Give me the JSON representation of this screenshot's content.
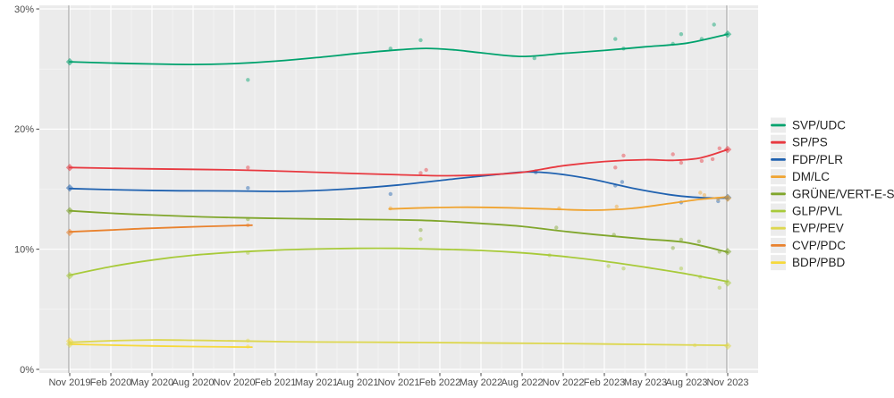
{
  "chart_data": {
    "type": "line",
    "title": "",
    "subtitle": "",
    "grid": "white-on-gray",
    "plot_background": "#ebebeb",
    "legend_position": "right",
    "x_axis": {
      "unit": "month",
      "tick_labels": [
        "Nov 2019",
        "Feb 2020",
        "May 2020",
        "Aug 2020",
        "Nov 2020",
        "Feb 2021",
        "May 2021",
        "Aug 2021",
        "Nov 2021",
        "Feb 2022",
        "May 2022",
        "Aug 2022",
        "Nov 2022",
        "Feb 2023",
        "May 2023",
        "Aug 2023",
        "Nov 2023"
      ],
      "tick_months": [
        0,
        3,
        6,
        9,
        12,
        15,
        18,
        21,
        24,
        27,
        30,
        33,
        36,
        39,
        42,
        45,
        48
      ]
    },
    "y_axis": {
      "tick_labels": [
        "0%",
        "10%",
        "20%",
        "30%"
      ],
      "tick_values": [
        0,
        10,
        20,
        30
      ],
      "minor_values": [
        5,
        15,
        25
      ],
      "range": [
        0,
        30.6
      ]
    },
    "election_marker_months": [
      0,
      48
    ],
    "series": [
      {
        "name": "SVP/UDC",
        "color": "#00a26d",
        "trend": [
          [
            0,
            25.6
          ],
          [
            3,
            25.5
          ],
          [
            6,
            25.42
          ],
          [
            9,
            25.38
          ],
          [
            12,
            25.45
          ],
          [
            15,
            25.65
          ],
          [
            18,
            25.95
          ],
          [
            21,
            26.3
          ],
          [
            24,
            26.6
          ],
          [
            26,
            26.72
          ],
          [
            28,
            26.6
          ],
          [
            30,
            26.35
          ],
          [
            33,
            26.05
          ],
          [
            36,
            26.3
          ],
          [
            39,
            26.55
          ],
          [
            42,
            26.85
          ],
          [
            45,
            27.15
          ],
          [
            48,
            27.9
          ]
        ],
        "polls": [
          [
            13,
            24.1
          ],
          [
            23.4,
            26.7
          ],
          [
            25.6,
            27.4
          ],
          [
            33.9,
            25.9
          ],
          [
            39.8,
            27.5
          ],
          [
            40.4,
            26.7
          ],
          [
            44,
            27.1
          ],
          [
            44.6,
            27.9
          ],
          [
            46.1,
            27.5
          ],
          [
            47,
            28.7
          ]
        ],
        "elections": [
          [
            0,
            25.6
          ],
          [
            48,
            27.9
          ]
        ]
      },
      {
        "name": "SP/PS",
        "color": "#e83940",
        "trend": [
          [
            0,
            16.8
          ],
          [
            4,
            16.72
          ],
          [
            8,
            16.66
          ],
          [
            12,
            16.6
          ],
          [
            16,
            16.48
          ],
          [
            20,
            16.33
          ],
          [
            24,
            16.2
          ],
          [
            27,
            16.12
          ],
          [
            30,
            16.18
          ],
          [
            33,
            16.4
          ],
          [
            36,
            16.95
          ],
          [
            39,
            17.3
          ],
          [
            42,
            17.45
          ],
          [
            44,
            17.4
          ],
          [
            46,
            17.6
          ],
          [
            48,
            18.3
          ]
        ],
        "polls": [
          [
            13,
            16.8
          ],
          [
            25.6,
            16.35
          ],
          [
            26,
            16.6
          ],
          [
            34,
            16.5
          ],
          [
            39.8,
            16.8
          ],
          [
            40.4,
            17.8
          ],
          [
            44,
            17.9
          ],
          [
            44.6,
            17.2
          ],
          [
            46.1,
            17.35
          ],
          [
            46.9,
            17.5
          ],
          [
            47.4,
            18.4
          ]
        ],
        "elections": [
          [
            0,
            16.8
          ],
          [
            48,
            18.3
          ]
        ]
      },
      {
        "name": "FDP/PLR",
        "color": "#2062b0",
        "trend": [
          [
            0,
            15.05
          ],
          [
            4,
            14.93
          ],
          [
            8,
            14.87
          ],
          [
            12,
            14.85
          ],
          [
            16,
            14.82
          ],
          [
            20,
            15.0
          ],
          [
            24,
            15.35
          ],
          [
            28,
            15.85
          ],
          [
            31,
            16.2
          ],
          [
            33,
            16.42
          ],
          [
            35,
            16.35
          ],
          [
            38,
            15.85
          ],
          [
            41,
            15.1
          ],
          [
            44,
            14.5
          ],
          [
            46,
            14.3
          ],
          [
            48,
            14.25
          ]
        ],
        "polls": [
          [
            13,
            15.1
          ],
          [
            23.4,
            14.6
          ],
          [
            34,
            16.4
          ],
          [
            39.8,
            15.3
          ],
          [
            40.3,
            15.6
          ],
          [
            44.6,
            13.9
          ],
          [
            47.3,
            14.0
          ]
        ],
        "elections": [
          [
            0,
            15.1
          ],
          [
            48,
            14.3
          ]
        ]
      },
      {
        "name": "DM/LC",
        "color": "#f0a431",
        "trend": [
          [
            23.3,
            13.35
          ],
          [
            26,
            13.45
          ],
          [
            29,
            13.5
          ],
          [
            32,
            13.45
          ],
          [
            35,
            13.35
          ],
          [
            38,
            13.25
          ],
          [
            41,
            13.4
          ],
          [
            44,
            13.85
          ],
          [
            46,
            14.15
          ],
          [
            48,
            14.35
          ]
        ],
        "polls": [
          [
            23.4,
            13.4
          ],
          [
            35.7,
            13.4
          ],
          [
            39.9,
            13.55
          ],
          [
            46,
            14.7
          ],
          [
            46.3,
            14.5
          ],
          [
            47.3,
            14.2
          ]
        ],
        "elections": [
          [
            48,
            14.25
          ]
        ]
      },
      {
        "name": "GRÜNE/VERT-E-S",
        "color": "#80a62c",
        "trend": [
          [
            0,
            13.2
          ],
          [
            3,
            13.0
          ],
          [
            6,
            12.85
          ],
          [
            9,
            12.72
          ],
          [
            12,
            12.63
          ],
          [
            16,
            12.55
          ],
          [
            20,
            12.5
          ],
          [
            24,
            12.45
          ],
          [
            27,
            12.35
          ],
          [
            30,
            12.15
          ],
          [
            33,
            11.9
          ],
          [
            36,
            11.5
          ],
          [
            39,
            11.15
          ],
          [
            42,
            10.85
          ],
          [
            45,
            10.55
          ],
          [
            48,
            9.75
          ]
        ],
        "polls": [
          [
            13,
            12.5
          ],
          [
            25.6,
            11.6
          ],
          [
            35.5,
            11.8
          ],
          [
            39.7,
            11.2
          ],
          [
            44,
            10.1
          ],
          [
            44.6,
            10.8
          ],
          [
            45.9,
            10.65
          ],
          [
            47.4,
            9.8
          ]
        ],
        "elections": [
          [
            0,
            13.2
          ],
          [
            48,
            9.8
          ]
        ]
      },
      {
        "name": "GLP/PVL",
        "color": "#a8ca3a",
        "trend": [
          [
            0,
            7.85
          ],
          [
            3,
            8.55
          ],
          [
            6,
            9.1
          ],
          [
            9,
            9.5
          ],
          [
            12,
            9.75
          ],
          [
            15,
            9.92
          ],
          [
            18,
            10.02
          ],
          [
            21,
            10.07
          ],
          [
            24,
            10.07
          ],
          [
            27,
            10.0
          ],
          [
            30,
            9.9
          ],
          [
            33,
            9.7
          ],
          [
            36,
            9.4
          ],
          [
            39,
            9.0
          ],
          [
            42,
            8.5
          ],
          [
            45,
            7.95
          ],
          [
            48,
            7.3
          ]
        ],
        "polls": [
          [
            13,
            9.7
          ],
          [
            25.6,
            10.85
          ],
          [
            35,
            9.5
          ],
          [
            39.3,
            8.6
          ],
          [
            40.4,
            8.4
          ],
          [
            44.6,
            8.4
          ],
          [
            46,
            7.7
          ],
          [
            47.4,
            6.8
          ]
        ],
        "elections": [
          [
            0,
            7.8
          ],
          [
            48,
            7.2
          ]
        ]
      },
      {
        "name": "EVP/PEV",
        "color": "#ddd74f",
        "trend": [
          [
            0,
            2.25
          ],
          [
            3,
            2.38
          ],
          [
            6,
            2.45
          ],
          [
            9,
            2.42
          ],
          [
            12,
            2.37
          ],
          [
            16,
            2.3
          ],
          [
            20,
            2.27
          ],
          [
            24,
            2.25
          ],
          [
            28,
            2.22
          ],
          [
            32,
            2.18
          ],
          [
            36,
            2.15
          ],
          [
            40,
            2.1
          ],
          [
            44,
            2.05
          ],
          [
            48,
            2.0
          ]
        ],
        "polls": [
          [
            13,
            2.4
          ],
          [
            45.6,
            2.0
          ]
        ],
        "elections": [
          [
            0,
            2.1
          ],
          [
            48,
            1.95
          ]
        ]
      },
      {
        "name": "CVP/PDC",
        "color": "#e9822e",
        "trend": [
          [
            0,
            11.45
          ],
          [
            3,
            11.6
          ],
          [
            6,
            11.75
          ],
          [
            10,
            11.9
          ],
          [
            13.3,
            12.0
          ]
        ],
        "polls": [
          [
            13,
            12.0
          ]
        ],
        "elections": [
          [
            0,
            11.4
          ]
        ]
      },
      {
        "name": "BDP/PBD",
        "color": "#f6d93c",
        "trend": [
          [
            0,
            2.1
          ],
          [
            3,
            2.02
          ],
          [
            6,
            1.95
          ],
          [
            9,
            1.9
          ],
          [
            11.5,
            1.87
          ],
          [
            13.3,
            1.85
          ]
        ],
        "polls": [
          [
            13,
            1.9
          ]
        ],
        "elections": [
          [
            0,
            2.35
          ]
        ]
      }
    ]
  },
  "layout_hints": {
    "draw_order": [
      "BDP/PBD",
      "CVP/PDC",
      "EVP/PEV",
      "GLP/PVL",
      "GRÜNE/VERT-E-S",
      "FDP/PLR",
      "DM/LC",
      "SP/PS",
      "SVP/UDC"
    ]
  }
}
